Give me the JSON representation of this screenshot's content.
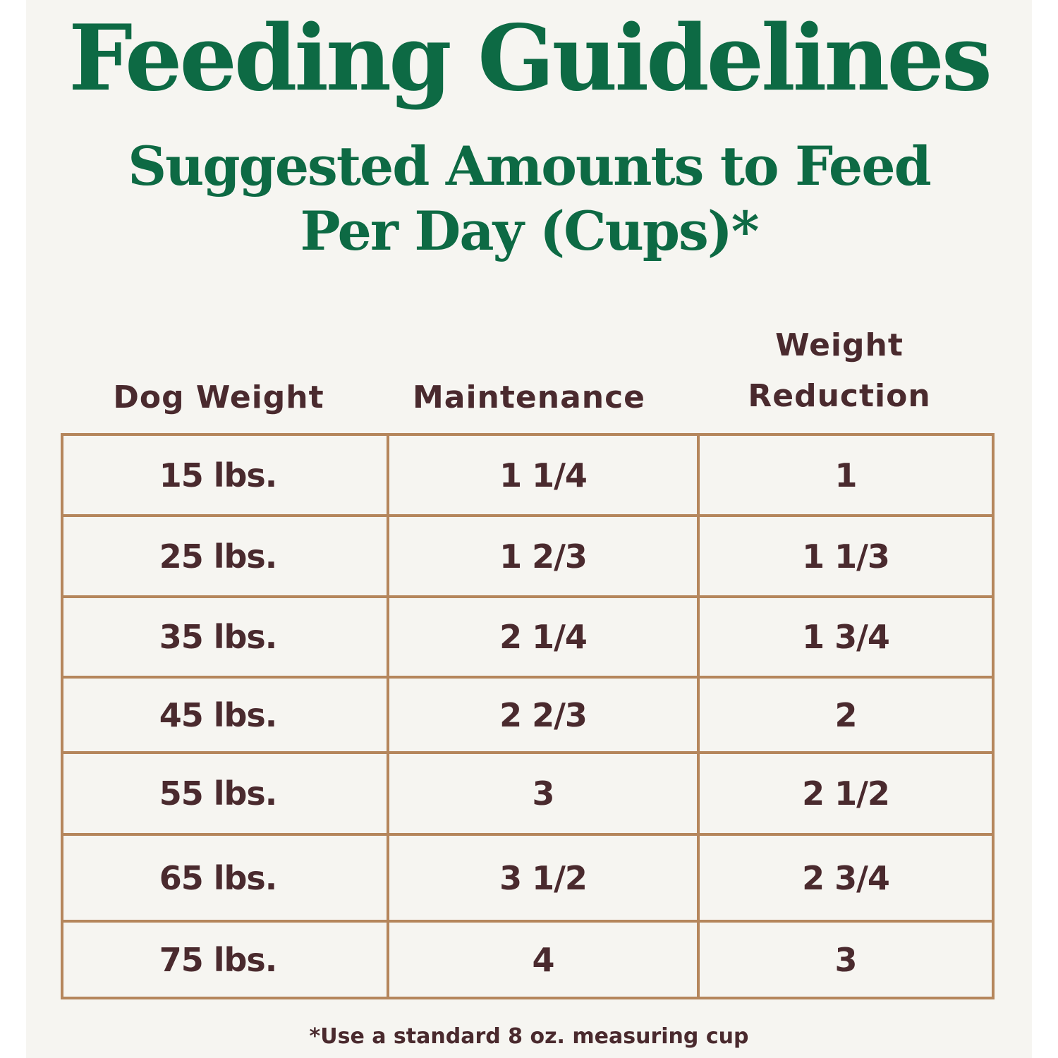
{
  "title": "Feeding Guidelines",
  "subtitle_line1": "Suggested Amounts to Feed",
  "subtitle_line2": "Per Day (Cups)*",
  "table": {
    "headers": [
      "Dog Weight",
      "Maintenance",
      "Weight",
      "Reduction"
    ],
    "rows": [
      [
        "15 lbs.",
        "1 1/4",
        "1"
      ],
      [
        "25 lbs.",
        "1 2/3",
        "1 1/3"
      ],
      [
        "35 lbs.",
        "2 1/4",
        "1 3/4"
      ],
      [
        "45 lbs.",
        "2 2/3",
        "2"
      ],
      [
        "55 lbs.",
        "3",
        "2 1/2"
      ],
      [
        "65 lbs.",
        "3 1/2",
        "2 3/4"
      ],
      [
        "75 lbs.",
        "4",
        "3"
      ]
    ]
  },
  "footnote": "*Use a standard 8 oz. measuring cup",
  "colors": {
    "green": "#0d6a44",
    "brown_text": "#4a2a2e",
    "border": "#b5865c",
    "background": "#f6f5f1"
  }
}
